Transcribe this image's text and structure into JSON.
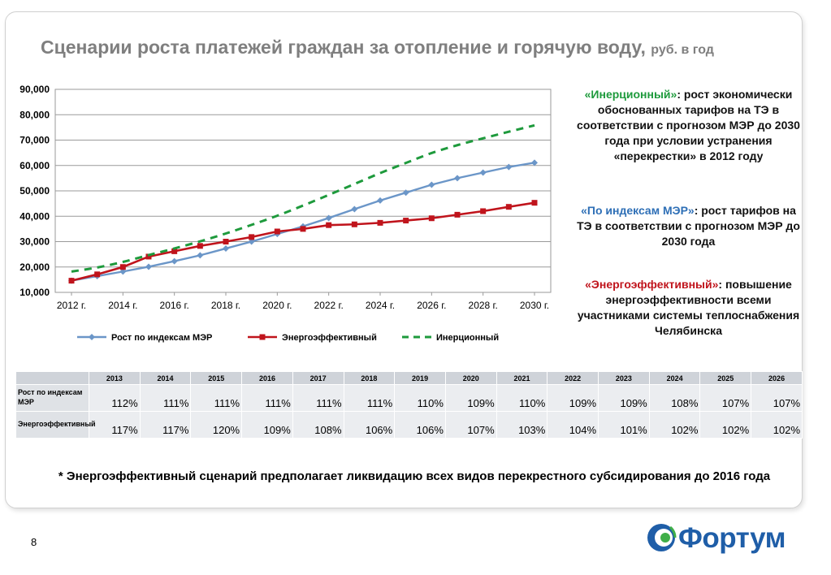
{
  "header": {
    "title": "Сценарии роста платежей граждан за отопление и горячую воду,",
    "unit": "руб. в год"
  },
  "chart_data": {
    "type": "line",
    "title": "",
    "xlabel": "",
    "ylabel": "",
    "x": [
      2012,
      2013,
      2014,
      2015,
      2016,
      2017,
      2018,
      2019,
      2020,
      2021,
      2022,
      2023,
      2024,
      2025,
      2026,
      2027,
      2028,
      2029,
      2030
    ],
    "x_tick_labels": [
      "2012 г.",
      "2014 г.",
      "2016 г.",
      "2018 г.",
      "2020 г.",
      "2022 г.",
      "2024 г.",
      "2026 г.",
      "2028 г.",
      "2030 г."
    ],
    "y_tick_labels": [
      "10,000",
      "20,000",
      "30,000",
      "40,000",
      "50,000",
      "60,000",
      "70,000",
      "80,000",
      "90,000"
    ],
    "ylim": [
      10000,
      90000
    ],
    "grid": true,
    "legend_position": "bottom",
    "series": [
      {
        "name": "Рост по индексам МЭР",
        "color": "#6b96c8",
        "style": "solid-diamond",
        "values": [
          14600,
          16400,
          18200,
          20100,
          22300,
          24600,
          27300,
          30000,
          33000,
          36000,
          39300,
          42800,
          46200,
          49300,
          52400,
          55000,
          57200,
          59400,
          61100
        ]
      },
      {
        "name": "Энергоэффективный",
        "color": "#c0141c",
        "style": "solid-square",
        "values": [
          14600,
          17100,
          20000,
          24100,
          26200,
          28300,
          30000,
          31800,
          34000,
          35000,
          36500,
          36800,
          37400,
          38300,
          39200,
          40600,
          42000,
          43700,
          45300
        ]
      },
      {
        "name": "Инерционный",
        "color": "#1e9a3c",
        "style": "dashed",
        "values": [
          18200,
          19800,
          22000,
          24700,
          27300,
          30100,
          33200,
          36600,
          40200,
          44200,
          48400,
          52700,
          57000,
          61000,
          64900,
          68000,
          70700,
          73300,
          75800
        ]
      }
    ]
  },
  "scenarios": {
    "s1": {
      "name": "«Инерционный»",
      "text": ": рост экономически обоснованных тарифов на ТЭ в соответствии с прогнозом МЭР до 2030 года при условии устранения «перекрестки» в 2012 году"
    },
    "s2": {
      "name": "«По индексам МЭР»",
      "text": ": рост тарифов на ТЭ в соответствии с прогнозом МЭР до 2030 года"
    },
    "s3": {
      "name": "«Энергоэффективный»",
      "text": ": повышение энергоэффективности всеми участниками системы теплоснабжения Челябинска"
    }
  },
  "table": {
    "years": [
      "2013",
      "2014",
      "2015",
      "2016",
      "2017",
      "2018",
      "2019",
      "2020",
      "2021",
      "2022",
      "2023",
      "2024",
      "2025",
      "2026"
    ],
    "rows": [
      {
        "label": "Рост по индексам МЭР",
        "values": [
          "112%",
          "111%",
          "111%",
          "111%",
          "111%",
          "111%",
          "110%",
          "109%",
          "110%",
          "109%",
          "109%",
          "108%",
          "107%",
          "107%"
        ]
      },
      {
        "label": "Энергоэффективный",
        "values": [
          "117%",
          "117%",
          "120%",
          "109%",
          "108%",
          "106%",
          "106%",
          "107%",
          "103%",
          "104%",
          "101%",
          "102%",
          "102%",
          "102%"
        ]
      }
    ]
  },
  "footnote": "* Энергоэффективный сценарий предполагает ликвидацию всех видов перекрестного субсидирования до 2016 года",
  "page_number": "8",
  "logo": {
    "text": "Фортум",
    "color": "#1f5ea8"
  }
}
